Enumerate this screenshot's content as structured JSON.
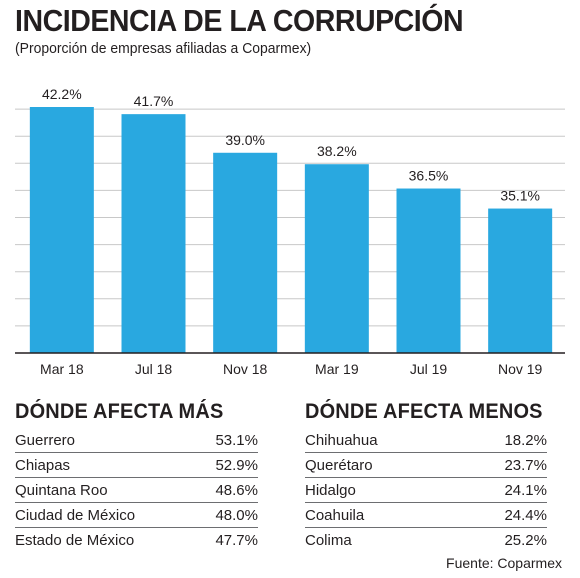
{
  "title": "INCIDENCIA DE LA CORRUPCIÓN",
  "subtitle": "(Proporción de empresas afiliadas a Coparmex)",
  "colors": {
    "bar": "#29a8e0",
    "grid": "#c8c8c8",
    "text": "#231f20"
  },
  "chart_data": {
    "type": "bar",
    "categories": [
      "Mar 18",
      "Jul 18",
      "Nov 18",
      "Mar 19",
      "Jul 19",
      "Nov 19"
    ],
    "values": [
      42.2,
      41.7,
      39.0,
      38.2,
      36.5,
      35.1
    ],
    "value_labels": [
      "42.2%",
      "41.7%",
      "39.0%",
      "38.2%",
      "36.5%",
      "35.1%"
    ],
    "ylim": [
      25,
      42.2
    ],
    "grid": true
  },
  "tables": {
    "mas": {
      "heading": "DÓNDE AFECTA MÁS",
      "rows": [
        {
          "name": "Guerrero",
          "value": "53.1%"
        },
        {
          "name": "Chiapas",
          "value": "52.9%"
        },
        {
          "name": "Quintana Roo",
          "value": "48.6%"
        },
        {
          "name": "Ciudad de México",
          "value": "48.0%"
        },
        {
          "name": "Estado de México",
          "value": "47.7%"
        }
      ]
    },
    "menos": {
      "heading": "DÓNDE AFECTA MENOS",
      "rows": [
        {
          "name": "Chihuahua",
          "value": "18.2%"
        },
        {
          "name": "Querétaro",
          "value": "23.7%"
        },
        {
          "name": "Hidalgo",
          "value": "24.1%"
        },
        {
          "name": "Coahuila",
          "value": "24.4%"
        },
        {
          "name": "Colima",
          "value": "25.2%"
        }
      ]
    }
  },
  "source": "Fuente: Coparmex"
}
